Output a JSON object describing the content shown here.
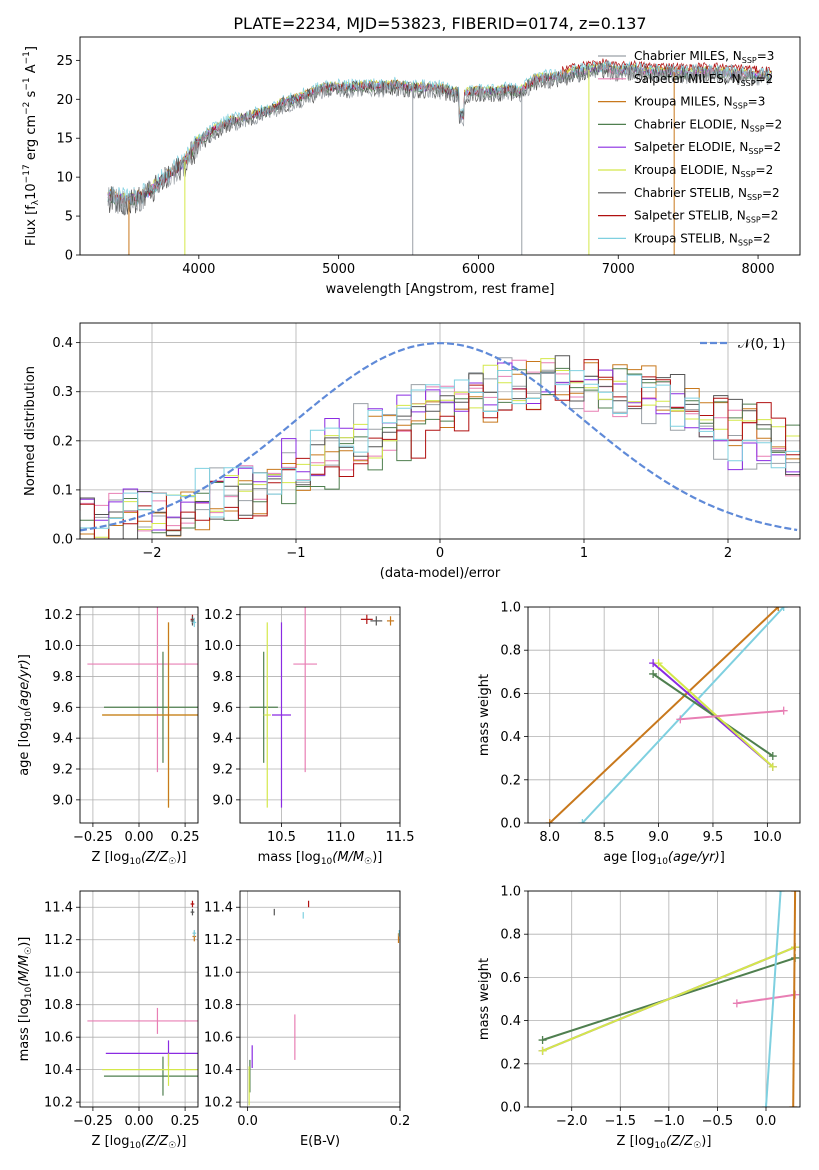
{
  "figure": {
    "title": "PLATE=2234, MJD=53823, FIBERID=0174, z=0.137"
  },
  "models": [
    {
      "label": "Chabrier MILES, N_SSP=3",
      "base": "Chabrier MILES, N",
      "sub": "SSP",
      "suffix": "=3",
      "color": "#9aa0a6"
    },
    {
      "label": "Salpeter MILES, N_SSP=2",
      "base": "Salpeter MILES, N",
      "sub": "SSP",
      "suffix": "=2",
      "color": "#e87fb4"
    },
    {
      "label": "Kroupa MILES, N_SSP=3",
      "base": "Kroupa MILES, N",
      "sub": "SSP",
      "suffix": "=3",
      "color": "#c8781c"
    },
    {
      "label": "Chabrier ELODIE, N_SSP=2",
      "base": "Chabrier ELODIE, N",
      "sub": "SSP",
      "suffix": "=2",
      "color": "#4f7f4f"
    },
    {
      "label": "Salpeter ELODIE, N_SSP=2",
      "base": "Salpeter ELODIE, N",
      "sub": "SSP",
      "suffix": "=2",
      "color": "#8a2be2"
    },
    {
      "label": "Kroupa ELODIE, N_SSP=2",
      "base": "Kroupa ELODIE, N",
      "sub": "SSP",
      "suffix": "=2",
      "color": "#d4e84a"
    },
    {
      "label": "Chabrier STELIB, N_SSP=2",
      "base": "Chabrier STELIB, N",
      "sub": "SSP",
      "suffix": "=2",
      "color": "#555555"
    },
    {
      "label": "Salpeter STELIB, N_SSP=2",
      "base": "Salpeter STELIB, N",
      "sub": "SSP",
      "suffix": "=2",
      "color": "#b01010"
    },
    {
      "label": "Kroupa STELIB, N_SSP=2",
      "base": "Kroupa STELIB, N",
      "sub": "SSP",
      "suffix": "=2",
      "color": "#7fd0e0"
    }
  ],
  "chart_data": [
    {
      "id": "spectrum",
      "type": "line",
      "xlabel": "wavelength [Angstrom, rest frame]",
      "ylabel": "Flux [f_λ 10^-17 erg cm^-2 s^-1 A^-1]",
      "xlim": [
        3150,
        8300
      ],
      "ylim": [
        0,
        28
      ],
      "xticks": [
        4000,
        5000,
        6000,
        7000,
        8000
      ],
      "yticks": [
        0,
        5,
        10,
        15,
        20,
        25
      ],
      "legend": "top-right",
      "grid": false,
      "continuum": {
        "x": [
          3350,
          3500,
          3600,
          3700,
          3800,
          3900,
          4000,
          4100,
          4200,
          4300,
          4400,
          4500,
          4600,
          4700,
          4800,
          4900,
          5000,
          5100,
          5200,
          5300,
          5400,
          5500,
          5600,
          5700,
          5800,
          5900,
          6000,
          6100,
          6200,
          6300,
          6400,
          6500,
          6600,
          6700,
          6800,
          6900,
          7000,
          7100,
          7200,
          7300,
          7400,
          7500,
          7600,
          7700,
          7800,
          7900,
          8000,
          8100
        ],
        "y": [
          7.5,
          7.0,
          7.6,
          9.0,
          10.5,
          12.0,
          14.5,
          16.0,
          17.0,
          17.5,
          18.0,
          18.5,
          19.5,
          20.0,
          20.8,
          21.5,
          21.5,
          21.5,
          21.8,
          21.6,
          21.8,
          21.5,
          21.5,
          21.5,
          21.0,
          20.8,
          21.0,
          21.0,
          21.2,
          21.0,
          22.5,
          22.8,
          23.0,
          23.5,
          23.8,
          24.0,
          23.5,
          23.8,
          23.5,
          23.5,
          23.5,
          23.3,
          23.5,
          23.5,
          23.3,
          23.3,
          23.0,
          23.0
        ]
      },
      "drops": [
        {
          "x": 3500,
          "color": "#c8781c"
        },
        {
          "x": 3900,
          "color": "#d4e84a"
        },
        {
          "x": 5530,
          "color": "#9aa0a6"
        },
        {
          "x": 6310,
          "color": "#9aa0a6"
        },
        {
          "x": 6790,
          "color": "#d4e84a"
        },
        {
          "x": 7400,
          "color": "#c8781c"
        }
      ]
    },
    {
      "id": "residual-histogram",
      "type": "line",
      "xlabel": "(data-model)/error",
      "ylabel": "Normed distribution",
      "xlim": [
        -2.5,
        2.5
      ],
      "ylim": [
        0,
        0.44
      ],
      "xticks": [
        -2,
        -1,
        0,
        1,
        2
      ],
      "yticks": [
        0.0,
        0.1,
        0.2,
        0.3,
        0.4
      ],
      "grid": true,
      "legend": "top-right",
      "gaussian_label": "𝒩(0, 1)",
      "gaussian_color": "#5f8ad8",
      "bin_width": 0.1
    },
    {
      "id": "age-vs-Z",
      "type": "scatter",
      "xlabel": "Z [log10(Z/Z☉)]",
      "ylabel": "age [log10(age/yr)]",
      "xlim": [
        -0.32,
        0.32
      ],
      "ylim": [
        8.85,
        10.25
      ],
      "xticks": [
        -0.25,
        0.0,
        0.25
      ],
      "yticks": [
        9.0,
        9.2,
        9.4,
        9.6,
        9.8,
        10.0,
        10.2
      ],
      "grid": true,
      "points": [
        {
          "x": 0.1,
          "y": 9.88,
          "xerr": 0.38,
          "yerr": 0.7,
          "color": "#e87fb4"
        },
        {
          "x": 0.13,
          "y": 9.6,
          "xerr": 0.32,
          "yerr": 0.36,
          "color": "#4f7f4f"
        },
        {
          "x": 0.16,
          "y": 9.55,
          "xerr": 0.36,
          "yerr": 0.6,
          "color": "#d4e84a"
        },
        {
          "x": 0.16,
          "y": 9.55,
          "xerr": 0.36,
          "yerr": 0.6,
          "color": "#c8781c"
        },
        {
          "x": 0.29,
          "y": 10.17,
          "xerr": 0.01,
          "yerr": 0.03,
          "color": "#b01010"
        },
        {
          "x": 0.29,
          "y": 10.16,
          "xerr": 0.01,
          "yerr": 0.03,
          "color": "#555555"
        },
        {
          "x": 0.3,
          "y": 10.15,
          "xerr": 0.01,
          "yerr": 0.03,
          "color": "#7fd0e0"
        }
      ]
    },
    {
      "id": "age-vs-mass",
      "type": "scatter",
      "xlabel": "mass [log10(M/M☉)]",
      "ylabel": "",
      "xlim": [
        10.15,
        11.5
      ],
      "ylim": [
        8.85,
        10.25
      ],
      "xticks": [
        10.5,
        11.0,
        11.5
      ],
      "yticks": [
        9.0,
        9.2,
        9.4,
        9.6,
        9.8,
        10.0,
        10.2
      ],
      "grid": true,
      "points": [
        {
          "x": 10.7,
          "y": 9.88,
          "xerr": 0.1,
          "yerr": 0.7,
          "color": "#e87fb4"
        },
        {
          "x": 10.35,
          "y": 9.6,
          "xerr": 0.12,
          "yerr": 0.36,
          "color": "#4f7f4f"
        },
        {
          "x": 10.5,
          "y": 9.55,
          "xerr": 0.08,
          "yerr": 0.6,
          "color": "#8a2be2"
        },
        {
          "x": 10.38,
          "y": 9.55,
          "xerr": 0.03,
          "yerr": 0.6,
          "color": "#d4e84a"
        },
        {
          "x": 11.22,
          "y": 10.17,
          "xerr": 0.05,
          "yerr": 0.03,
          "color": "#b01010"
        },
        {
          "x": 11.3,
          "y": 10.16,
          "xerr": 0.05,
          "yerr": 0.03,
          "color": "#555555"
        },
        {
          "x": 11.42,
          "y": 10.16,
          "xerr": 0.03,
          "yerr": 0.03,
          "color": "#c8781c"
        }
      ]
    },
    {
      "id": "mass-weight-vs-age",
      "type": "line",
      "xlabel": "age [log10(age/yr)]",
      "ylabel": "mass weight",
      "xlim": [
        7.8,
        10.3
      ],
      "ylim": [
        0,
        1
      ],
      "xticks": [
        8.0,
        8.5,
        9.0,
        9.5,
        10.0
      ],
      "yticks": [
        0.0,
        0.2,
        0.4,
        0.6,
        0.8,
        1.0
      ],
      "grid": true,
      "series": [
        {
          "color": "#c8781c",
          "x": [
            8.0,
            10.1
          ],
          "y": [
            0.0,
            1.0
          ]
        },
        {
          "color": "#7fd0e0",
          "x": [
            8.3,
            10.15
          ],
          "y": [
            0.0,
            1.0
          ]
        },
        {
          "color": "#8a2be2",
          "x": [
            8.95,
            10.05
          ],
          "y": [
            0.74,
            0.26
          ]
        },
        {
          "color": "#4f7f4f",
          "x": [
            8.95,
            10.05
          ],
          "y": [
            0.69,
            0.31
          ]
        },
        {
          "color": "#d4e84a",
          "x": [
            9.0,
            10.05
          ],
          "y": [
            0.74,
            0.26
          ]
        },
        {
          "color": "#e87fb4",
          "x": [
            9.2,
            10.15
          ],
          "y": [
            0.48,
            0.52
          ]
        }
      ]
    },
    {
      "id": "mass-vs-Z",
      "type": "scatter",
      "xlabel": "Z [log10(Z/Z☉)]",
      "ylabel": "mass [log10(M/M☉)]",
      "xlim": [
        -0.32,
        0.32
      ],
      "ylim": [
        10.17,
        11.5
      ],
      "xticks": [
        -0.25,
        0.0,
        0.25
      ],
      "yticks": [
        10.2,
        10.4,
        10.6,
        10.8,
        11.0,
        11.2,
        11.4
      ],
      "grid": true,
      "points": [
        {
          "x": 0.1,
          "y": 10.7,
          "xerr": 0.38,
          "yerr": 0.08,
          "color": "#e87fb4"
        },
        {
          "x": 0.16,
          "y": 10.5,
          "xerr": 0.34,
          "yerr": 0.08,
          "color": "#8a2be2"
        },
        {
          "x": 0.13,
          "y": 10.36,
          "xerr": 0.32,
          "yerr": 0.12,
          "color": "#4f7f4f"
        },
        {
          "x": 0.16,
          "y": 10.4,
          "xerr": 0.36,
          "yerr": 0.1,
          "color": "#d4e84a"
        },
        {
          "x": 0.29,
          "y": 11.42,
          "xerr": 0.01,
          "yerr": 0.02,
          "color": "#b01010"
        },
        {
          "x": 0.29,
          "y": 11.37,
          "xerr": 0.01,
          "yerr": 0.02,
          "color": "#555555"
        },
        {
          "x": 0.3,
          "y": 11.22,
          "xerr": 0.01,
          "yerr": 0.03,
          "color": "#c8781c"
        },
        {
          "x": 0.3,
          "y": 11.24,
          "xerr": 0.01,
          "yerr": 0.02,
          "color": "#7fd0e0"
        }
      ]
    },
    {
      "id": "mass-vs-EBV",
      "type": "scatter",
      "xlabel": "E(B-V)",
      "ylabel": "",
      "xlim": [
        -0.01,
        0.2
      ],
      "ylim": [
        10.17,
        11.5
      ],
      "xticks": [
        0.0,
        0.2
      ],
      "yticks": [
        10.2,
        10.4,
        10.6,
        10.8,
        11.0,
        11.2,
        11.4
      ],
      "grid": true,
      "points": [
        {
          "x": 0.062,
          "y": 10.6,
          "xerr": 0.0,
          "yerr": 0.14,
          "color": "#e87fb4"
        },
        {
          "x": 0.006,
          "y": 10.48,
          "xerr": 0.0,
          "yerr": 0.07,
          "color": "#8a2be2"
        },
        {
          "x": 0.003,
          "y": 10.36,
          "xerr": 0.0,
          "yerr": 0.1,
          "color": "#4f7f4f"
        },
        {
          "x": 0.002,
          "y": 10.3,
          "xerr": 0.0,
          "yerr": 0.12,
          "color": "#d4e84a"
        },
        {
          "x": 0.035,
          "y": 11.37,
          "xerr": 0.0,
          "yerr": 0.02,
          "color": "#555555"
        },
        {
          "x": 0.08,
          "y": 11.42,
          "xerr": 0.0,
          "yerr": 0.02,
          "color": "#b01010"
        },
        {
          "x": 0.073,
          "y": 11.35,
          "xerr": 0.0,
          "yerr": 0.02,
          "color": "#7fd0e0"
        },
        {
          "x": 0.198,
          "y": 11.21,
          "xerr": 0.0,
          "yerr": 0.03,
          "color": "#c8781c"
        },
        {
          "x": 0.199,
          "y": 11.24,
          "xerr": 0.0,
          "yerr": 0.02,
          "color": "#7fd0e0"
        }
      ]
    },
    {
      "id": "mass-weight-vs-Z",
      "type": "line",
      "xlabel": "Z [log10(Z/Z☉)]",
      "ylabel": "mass weight",
      "xlim": [
        -2.45,
        0.35
      ],
      "ylim": [
        0,
        1
      ],
      "xticks": [
        -2.0,
        -1.5,
        -1.0,
        -0.5,
        0.0
      ],
      "yticks": [
        0.0,
        0.2,
        0.4,
        0.6,
        0.8,
        1.0
      ],
      "grid": true,
      "series": [
        {
          "color": "#4f7f4f",
          "x": [
            -2.3,
            0.3
          ],
          "y": [
            0.31,
            0.69
          ]
        },
        {
          "color": "#8a2be2",
          "x": [
            -2.3,
            0.3
          ],
          "y": [
            0.26,
            0.74
          ]
        },
        {
          "color": "#d4e84a",
          "x": [
            -2.3,
            0.3
          ],
          "y": [
            0.26,
            0.74
          ]
        },
        {
          "color": "#e87fb4",
          "x": [
            -0.3,
            0.3
          ],
          "y": [
            0.48,
            0.52
          ]
        },
        {
          "color": "#7fd0e0",
          "x": [
            0.0,
            0.15
          ],
          "y": [
            0.0,
            1.0
          ]
        },
        {
          "color": "#c8781c",
          "x": [
            0.28,
            0.3
          ],
          "y": [
            0.0,
            1.0
          ]
        }
      ]
    }
  ]
}
